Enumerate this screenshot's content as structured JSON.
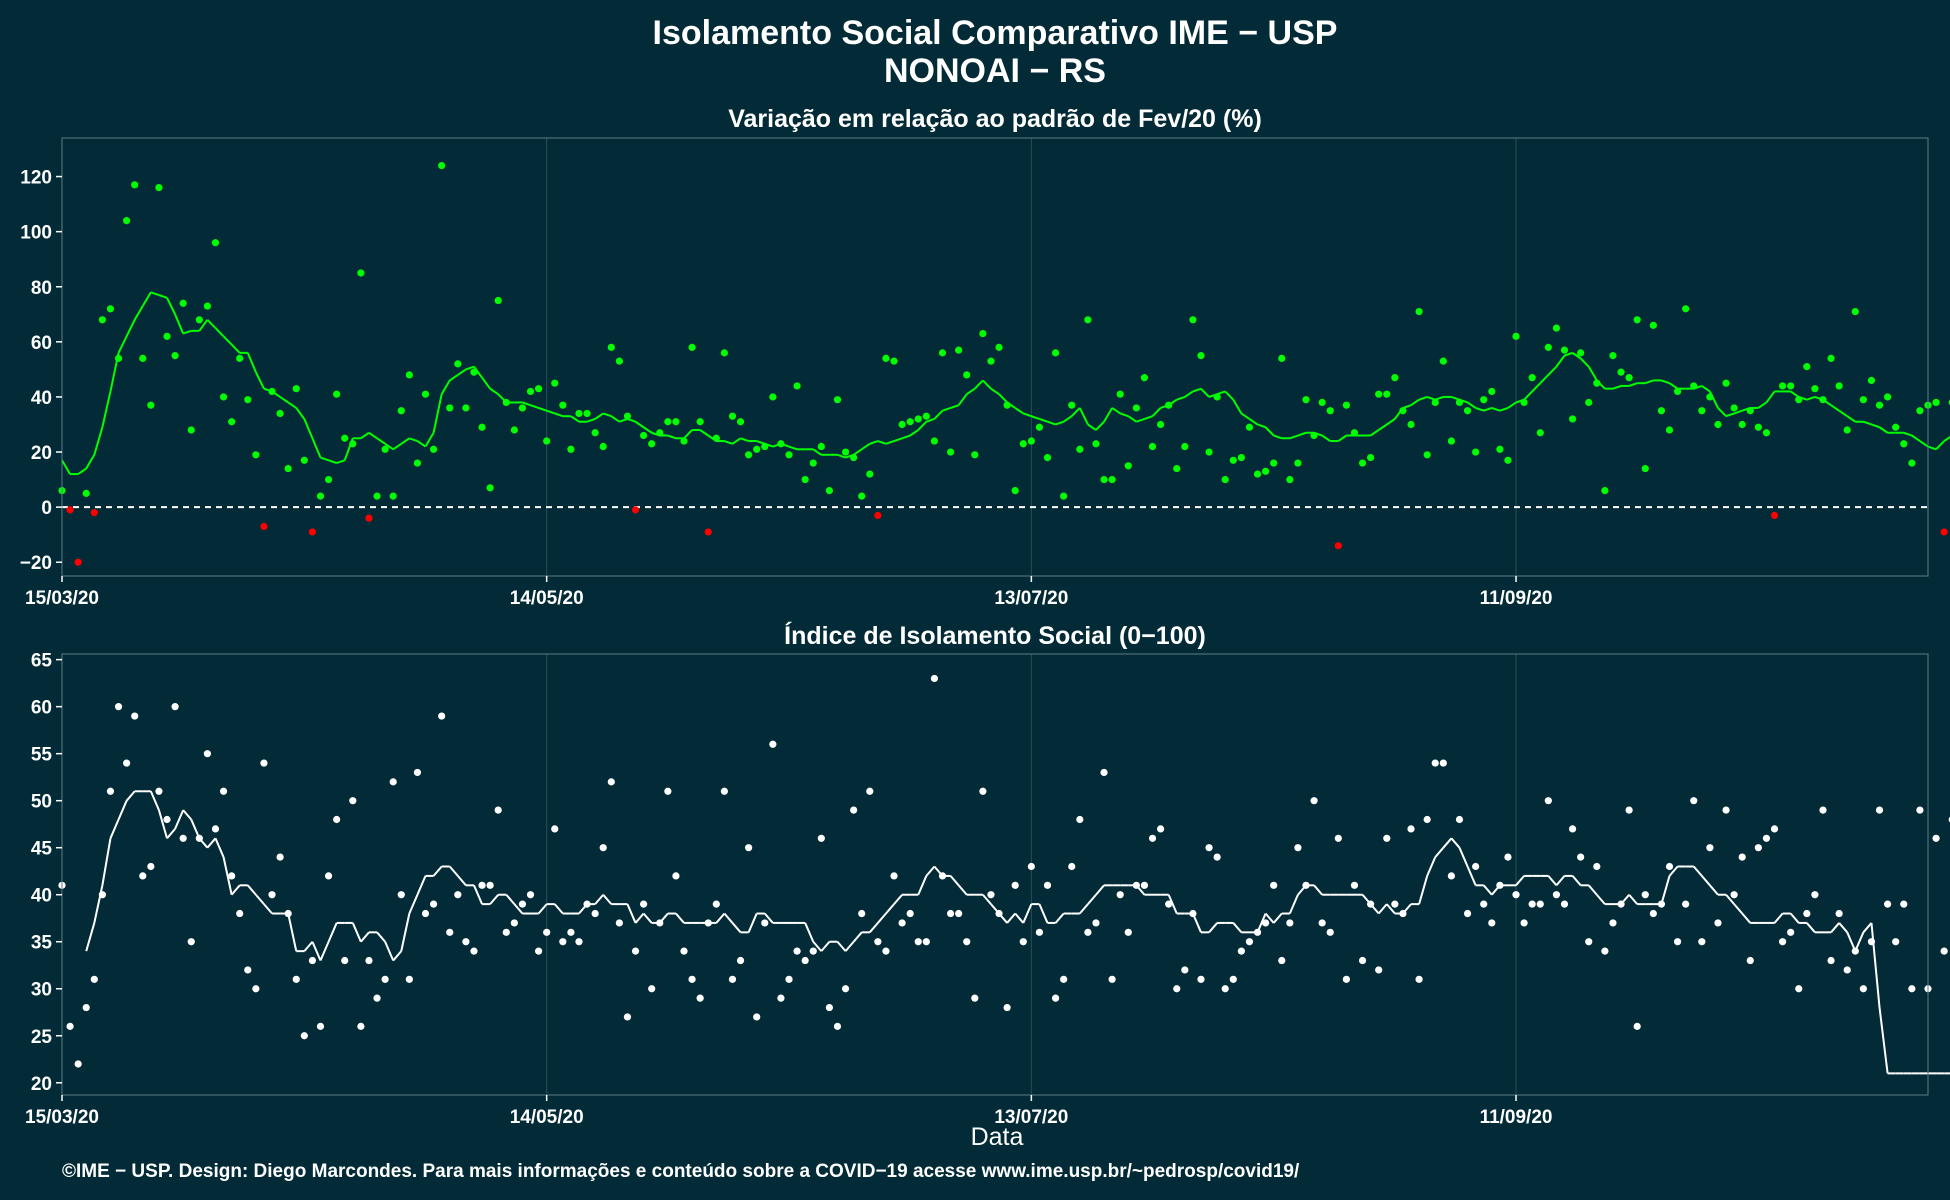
{
  "header": {
    "title": "Isolamento Social Comparativo IME − USP",
    "subtitle": "NONOAI − RS"
  },
  "footer": {
    "text": "©IME − USP. Design: Diego Marcondes. Para mais informações e conteúdo sobre a COVID−19 acesse www.ime.usp.br/~pedrosp/covid19/"
  },
  "colors": {
    "background": "#022b37",
    "positive": "#00ff00",
    "negative": "#ff0000",
    "index": "#ffffff"
  },
  "chart_data": [
    {
      "type": "scatter",
      "title": "Variação em relação ao padrão de Fev/20 (%)",
      "xlabel": "",
      "x_start": "15/03/20",
      "x_range_days": [
        0,
        231
      ],
      "x_ticks": [
        {
          "day": 0,
          "label": "15/03/20"
        },
        {
          "day": 60,
          "label": "14/05/20"
        },
        {
          "day": 120,
          "label": "13/07/20"
        },
        {
          "day": 180,
          "label": "11/09/20"
        }
      ],
      "ylim": [
        -25,
        134
      ],
      "y_ticks": [
        -20,
        0,
        20,
        40,
        60,
        80,
        100,
        120
      ],
      "reference_line": 0,
      "grid": true,
      "points": [
        6,
        -1,
        -20,
        5,
        -2,
        68,
        72,
        54,
        104,
        117,
        54,
        37,
        116,
        62,
        55,
        74,
        28,
        68,
        73,
        96,
        40,
        31,
        54,
        39,
        19,
        -7,
        42,
        34,
        14,
        43,
        17,
        -9,
        4,
        10,
        41,
        25,
        23,
        85,
        -4,
        4,
        21,
        4,
        35,
        48,
        16,
        41,
        21,
        124,
        36,
        52,
        36,
        49,
        29,
        7,
        75,
        38,
        28,
        36,
        42,
        43,
        24,
        45,
        37,
        21,
        34,
        34,
        27,
        22,
        58,
        53,
        33,
        -1,
        26,
        23,
        27,
        31,
        31,
        24,
        58,
        31,
        -9,
        25,
        56,
        33,
        31,
        19,
        21,
        22,
        40,
        23,
        19,
        44,
        10,
        16,
        22,
        6,
        39,
        20,
        18,
        4,
        12,
        -3,
        54,
        53,
        30,
        31,
        32,
        33,
        24,
        56,
        20,
        57,
        48,
        19,
        63,
        53,
        58,
        37,
        6,
        23,
        24,
        29,
        18,
        56,
        4,
        37,
        21,
        68,
        23,
        10,
        10,
        41,
        15,
        36,
        47,
        22,
        30,
        37,
        14,
        22,
        68,
        55,
        20,
        40,
        10,
        17,
        18,
        29,
        12,
        13,
        16,
        54,
        10,
        16,
        39,
        26,
        38,
        35,
        -14,
        37,
        27,
        16,
        18,
        41,
        41,
        47,
        35,
        30,
        71,
        19,
        38,
        53,
        24,
        38,
        35,
        20,
        39,
        42,
        21,
        17,
        62,
        38,
        47,
        27,
        58,
        65,
        57,
        32,
        56,
        38,
        45,
        6,
        55,
        49,
        47,
        68,
        14,
        66,
        35,
        28,
        42,
        72,
        44,
        35,
        40,
        30,
        45,
        36,
        30,
        35,
        29,
        27,
        -3,
        44,
        44,
        39,
        51,
        43,
        39,
        54,
        44,
        28,
        71,
        39,
        46,
        37,
        40,
        29,
        23,
        16,
        35,
        37,
        38,
        -9,
        38,
        34,
        20,
        28,
        10,
        37,
        23,
        44,
        29,
        30,
        30,
        23,
        23,
        25,
        29,
        33,
        45
      ],
      "moving_average": [
        17,
        12,
        12,
        14,
        19,
        29,
        42,
        56,
        62,
        68,
        73,
        78,
        77,
        76,
        70,
        63,
        64,
        64,
        68,
        65,
        62,
        59,
        56,
        56,
        49,
        43,
        42,
        40,
        38,
        36,
        32,
        25,
        18,
        17,
        16,
        17,
        25,
        25,
        27,
        25,
        23,
        21,
        23,
        25,
        24,
        22,
        27,
        41,
        46,
        48,
        50,
        51,
        47,
        43,
        41,
        38,
        38,
        38,
        37,
        36,
        35,
        34,
        33,
        33,
        31,
        31,
        32,
        34,
        33,
        31,
        32,
        31,
        29,
        27,
        26,
        26,
        25,
        25,
        28,
        28,
        26,
        24,
        24,
        23,
        25,
        24,
        24,
        23,
        22,
        23,
        22,
        21,
        21,
        21,
        19,
        19,
        19,
        18,
        19,
        21,
        23,
        24,
        23,
        24,
        25,
        26,
        28,
        31,
        32,
        35,
        36,
        37,
        41,
        43,
        46,
        43,
        41,
        38,
        36,
        34,
        33,
        32,
        31,
        30,
        31,
        33,
        36,
        30,
        28,
        31,
        36,
        34,
        33,
        31,
        32,
        33,
        36,
        37,
        39,
        40,
        42,
        43,
        40,
        41,
        42,
        39,
        34,
        32,
        30,
        29,
        26,
        25,
        25,
        26,
        27,
        27,
        26,
        24,
        24,
        26,
        26,
        26,
        26,
        28,
        30,
        32,
        36,
        37,
        39,
        40,
        39,
        40,
        40,
        39,
        38,
        36,
        35,
        36,
        35,
        36,
        38,
        39,
        42,
        45,
        48,
        51,
        55,
        56,
        54,
        51,
        46,
        43,
        43,
        44,
        44,
        45,
        45,
        46,
        46,
        45,
        43,
        43,
        43,
        44,
        42,
        36,
        33,
        34,
        35,
        36,
        36,
        38,
        42,
        42,
        42,
        40,
        39,
        40,
        39,
        37,
        35,
        33,
        31,
        31,
        30,
        29,
        27,
        27,
        27,
        26,
        24,
        22,
        21,
        24,
        26,
        27,
        28,
        30
      ]
    },
    {
      "type": "scatter",
      "title": "Índice de Isolamento Social (0−100)",
      "xlabel": "Data",
      "x_start": "15/03/20",
      "x_range_days": [
        0,
        231
      ],
      "x_ticks": [
        {
          "day": 0,
          "label": "15/03/20"
        },
        {
          "day": 60,
          "label": "14/05/20"
        },
        {
          "day": 120,
          "label": "13/07/20"
        },
        {
          "day": 180,
          "label": "11/09/20"
        }
      ],
      "ylim": [
        18.7,
        65.6
      ],
      "y_ticks": [
        20,
        25,
        30,
        35,
        40,
        45,
        50,
        55,
        60,
        65
      ],
      "grid": true,
      "points": [
        41,
        26,
        22,
        28,
        31,
        40,
        51,
        60,
        54,
        59,
        42,
        43,
        51,
        48,
        60,
        46,
        35,
        46,
        55,
        47,
        51,
        42,
        38,
        32,
        30,
        54,
        40,
        44,
        38,
        31,
        25,
        33,
        26,
        42,
        48,
        33,
        50,
        26,
        33,
        29,
        31,
        52,
        40,
        31,
        53,
        38,
        39,
        59,
        36,
        40,
        35,
        34,
        41,
        41,
        49,
        36,
        37,
        39,
        40,
        34,
        36,
        47,
        35,
        36,
        35,
        39,
        38,
        45,
        52,
        37,
        27,
        34,
        39,
        30,
        37,
        51,
        42,
        34,
        31,
        29,
        37,
        39,
        51,
        31,
        33,
        45,
        27,
        37,
        56,
        29,
        31,
        34,
        33,
        34,
        46,
        28,
        26,
        30,
        49,
        38,
        51,
        35,
        34,
        42,
        37,
        38,
        35,
        35,
        63,
        42,
        38,
        38,
        35,
        29,
        51,
        40,
        38,
        28,
        41,
        35,
        43,
        36,
        41,
        29,
        31,
        43,
        48,
        36,
        37,
        53,
        31,
        40,
        36,
        41,
        41,
        46,
        47,
        39,
        30,
        32,
        38,
        31,
        45,
        44,
        30,
        31,
        34,
        35,
        36,
        37,
        41,
        33,
        37,
        45,
        41,
        50,
        37,
        36,
        46,
        31,
        41,
        33,
        39,
        32,
        46,
        39,
        38,
        47,
        31,
        48,
        54,
        54,
        42,
        48,
        38,
        43,
        39,
        37,
        41,
        44,
        40,
        37,
        39,
        39,
        50,
        40,
        39,
        47,
        44,
        35,
        43,
        34,
        37,
        39,
        49,
        26,
        40,
        38,
        39,
        43,
        35,
        39,
        50,
        35,
        45,
        37,
        49,
        40,
        44,
        33,
        45,
        46,
        47,
        35,
        36,
        30,
        38,
        40,
        49,
        33,
        38,
        32,
        34,
        30,
        35,
        49,
        39,
        35,
        39,
        30,
        49,
        30,
        46,
        34,
        48,
        37,
        44,
        39,
        50,
        29,
        31,
        36,
        49,
        34,
        39
      ],
      "moving_average": [
        null,
        null,
        null,
        34,
        37,
        41,
        46,
        48,
        50,
        51,
        51,
        51,
        49,
        46,
        47,
        49,
        48,
        46,
        45,
        46,
        44,
        40,
        41,
        41,
        40,
        39,
        38,
        38,
        38,
        34,
        34,
        35,
        33,
        35,
        37,
        37,
        37,
        35,
        36,
        36,
        35,
        33,
        34,
        38,
        40,
        42,
        42,
        43,
        43,
        42,
        41,
        41,
        39,
        39,
        40,
        40,
        39,
        38,
        38,
        38,
        39,
        39,
        38,
        38,
        38,
        39,
        39,
        40,
        39,
        39,
        39,
        37,
        38,
        37,
        37,
        38,
        38,
        37,
        37,
        37,
        37,
        37,
        38,
        37,
        36,
        36,
        38,
        38,
        37,
        37,
        37,
        37,
        37,
        35,
        34,
        35,
        35,
        34,
        35,
        36,
        36,
        37,
        38,
        39,
        40,
        40,
        40,
        42,
        43,
        42,
        42,
        41,
        40,
        40,
        40,
        39,
        38,
        37,
        38,
        37,
        39,
        39,
        37,
        37,
        38,
        38,
        38,
        39,
        40,
        41,
        41,
        41,
        41,
        41,
        40,
        40,
        40,
        40,
        38,
        38,
        38,
        36,
        36,
        37,
        37,
        37,
        36,
        36,
        36,
        38,
        37,
        38,
        38,
        40,
        41,
        41,
        40,
        40,
        40,
        40,
        40,
        40,
        39,
        38,
        39,
        38,
        38,
        39,
        39,
        42,
        44,
        45,
        46,
        45,
        43,
        41,
        41,
        40,
        41,
        41,
        41,
        42,
        42,
        42,
        42,
        41,
        42,
        42,
        41,
        41,
        40,
        39,
        39,
        39,
        40,
        39,
        39,
        39,
        39,
        42,
        43,
        43,
        43,
        42,
        41,
        40,
        40,
        39,
        38,
        37,
        37,
        37,
        37,
        38,
        38,
        37,
        37,
        36,
        36,
        36,
        37,
        36,
        34,
        36,
        37,
        28,
        21,
        21,
        21,
        21,
        21,
        21,
        21,
        21,
        21,
        21,
        21,
        21,
        21,
        21,
        21
      ]
    }
  ]
}
